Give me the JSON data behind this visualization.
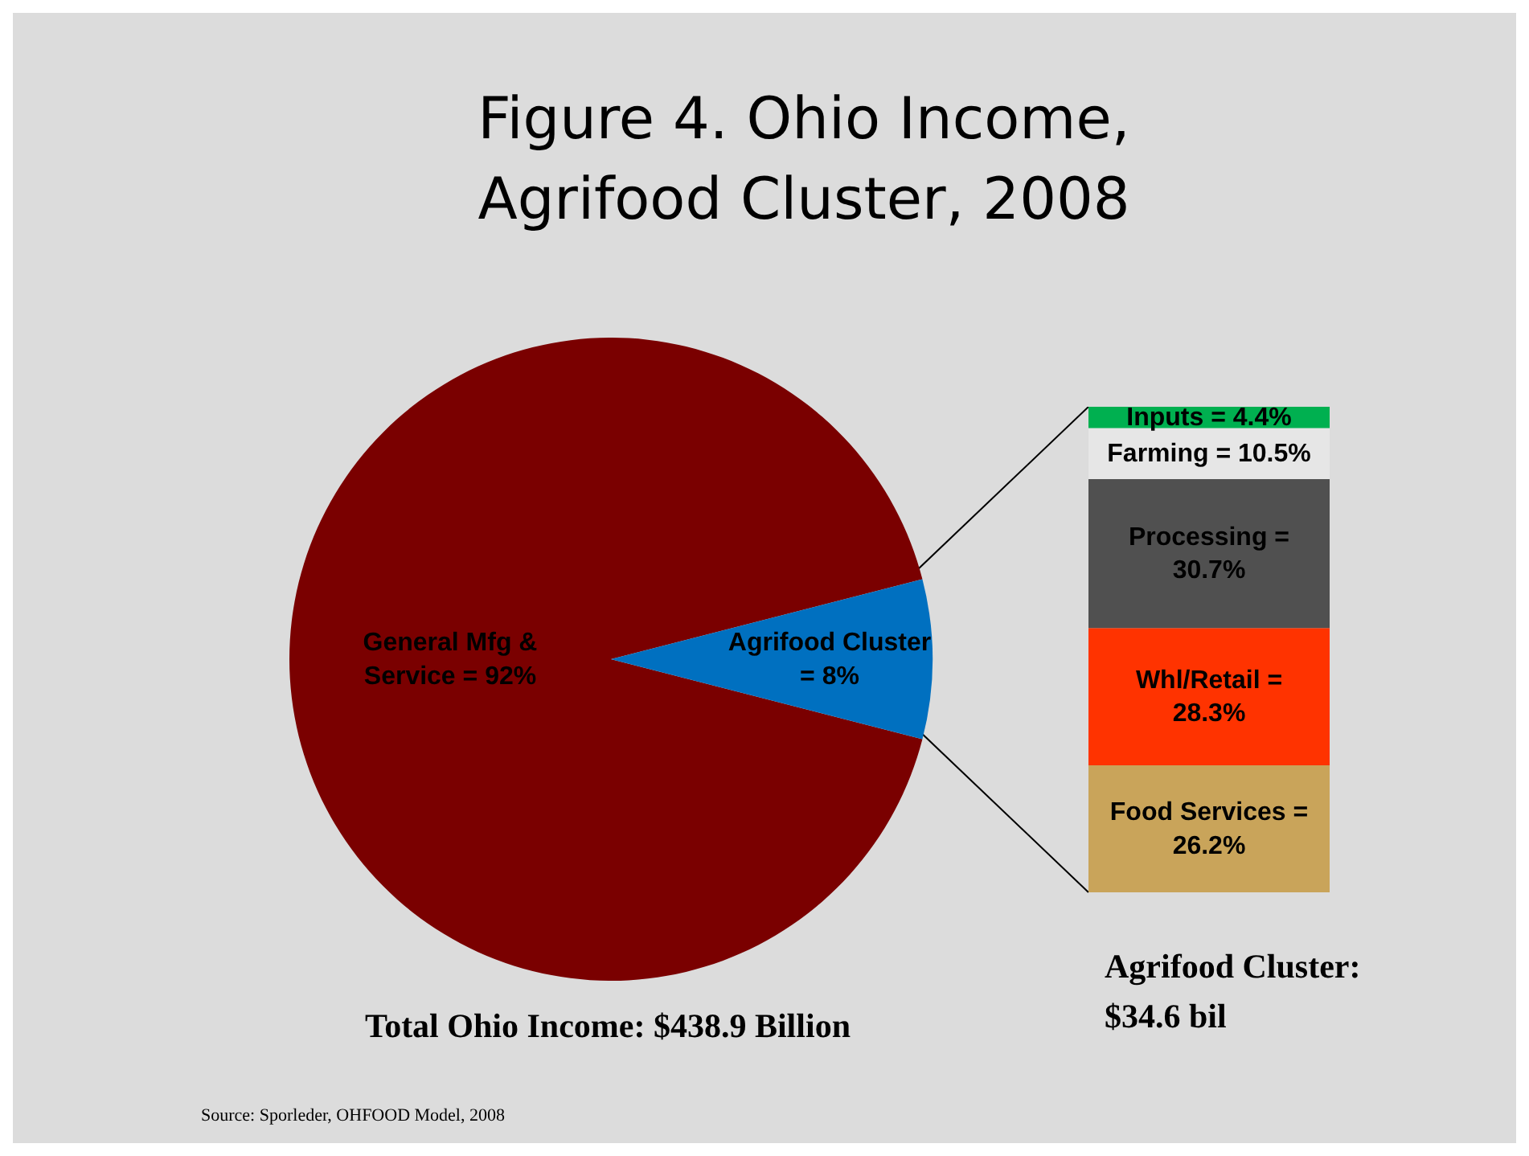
{
  "chart_data": [
    {
      "type": "pie",
      "title": "Figure 4. Ohio Income, Agrifood Cluster, 2008",
      "categories": [
        "General Mfg & Service",
        "Agrifood Cluster"
      ],
      "values": [
        92,
        8
      ],
      "colors": [
        "#7a0000",
        "#0070c0"
      ],
      "value_labels": [
        "= 92%",
        "= 8%"
      ],
      "annotations": [
        "Total Ohio Income: $438.9 Billion",
        "Source: Sporleder, OHFOOD Model, 2008"
      ]
    },
    {
      "type": "bar",
      "stacked": true,
      "categories": [
        null
      ],
      "series": [
        {
          "color": "#c9a45a",
          "values": [
            26.2
          ],
          "value_labels": [
            "Food Services = 26.2%"
          ]
        },
        {
          "color": "#ff3300",
          "values": [
            28.3
          ],
          "value_labels": [
            "Whl/Retail = 28.3%"
          ]
        },
        {
          "color": "#505050",
          "values": [
            30.7
          ],
          "value_labels": [
            "Processing = 30.7%"
          ]
        },
        {
          "color": "#e6e6e6",
          "values": [
            10.5
          ],
          "value_labels": [
            "Farming = 10.5%"
          ]
        },
        {
          "color": "#00b050",
          "values": [
            4.4
          ],
          "value_labels": [
            "Inputs = 4.4%"
          ]
        }
      ],
      "annotations": [
        "Agrifood Cluster: $34.6 bil"
      ]
    }
  ]
}
